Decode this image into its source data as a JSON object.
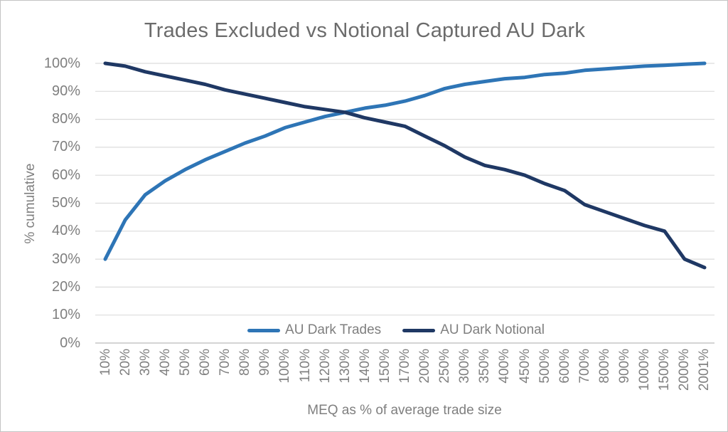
{
  "chart_data": {
    "type": "line",
    "title": "Trades Excluded vs Notional Captured AU Dark",
    "xlabel": "MEQ as % of average trade size",
    "ylabel": "% cumulative",
    "categories": [
      "10%",
      "20%",
      "30%",
      "40%",
      "50%",
      "60%",
      "70%",
      "80%",
      "90%",
      "100%",
      "110%",
      "120%",
      "130%",
      "140%",
      "150%",
      "170%",
      "200%",
      "250%",
      "300%",
      "350%",
      "400%",
      "450%",
      "500%",
      "600%",
      "700%",
      "800%",
      "900%",
      "1000%",
      "1500%",
      "2000%",
      "2001%"
    ],
    "y_ticks": [
      "0%",
      "10%",
      "20%",
      "30%",
      "40%",
      "50%",
      "60%",
      "70%",
      "80%",
      "90%",
      "100%"
    ],
    "ylim": [
      0,
      100
    ],
    "grid": "horizontal-only",
    "legend_position": "bottom-center-inside",
    "colors": {
      "trades_line": "#2E75B6",
      "notional_line": "#1F3864",
      "gridline": "#DCDCDC",
      "axis_line": "#C6C6C6",
      "title_text": "#6B6B6B",
      "label_text": "#7F7F7F",
      "page_border": "#C4C4C4"
    },
    "series": [
      {
        "name": "AU Dark Trades",
        "color": "#2E75B6",
        "values": [
          30,
          44,
          53,
          58,
          62,
          65.5,
          68.5,
          71.5,
          74,
          77,
          79,
          81,
          82.5,
          84,
          85,
          86.5,
          88.5,
          91,
          92.5,
          93.5,
          94.5,
          95,
          96,
          96.5,
          97.5,
          98,
          98.5,
          99,
          99.3,
          99.7,
          100
        ]
      },
      {
        "name": "AU Dark Notional",
        "color": "#1F3864",
        "values": [
          100,
          99,
          97,
          95.5,
          94,
          92.5,
          90.5,
          89,
          87.5,
          86,
          84.5,
          83.5,
          82.5,
          80.5,
          79,
          77.5,
          74,
          70.5,
          66.5,
          63.5,
          62,
          60,
          57,
          54.5,
          49.5,
          47,
          44.5,
          42,
          40,
          30,
          27
        ]
      }
    ]
  }
}
